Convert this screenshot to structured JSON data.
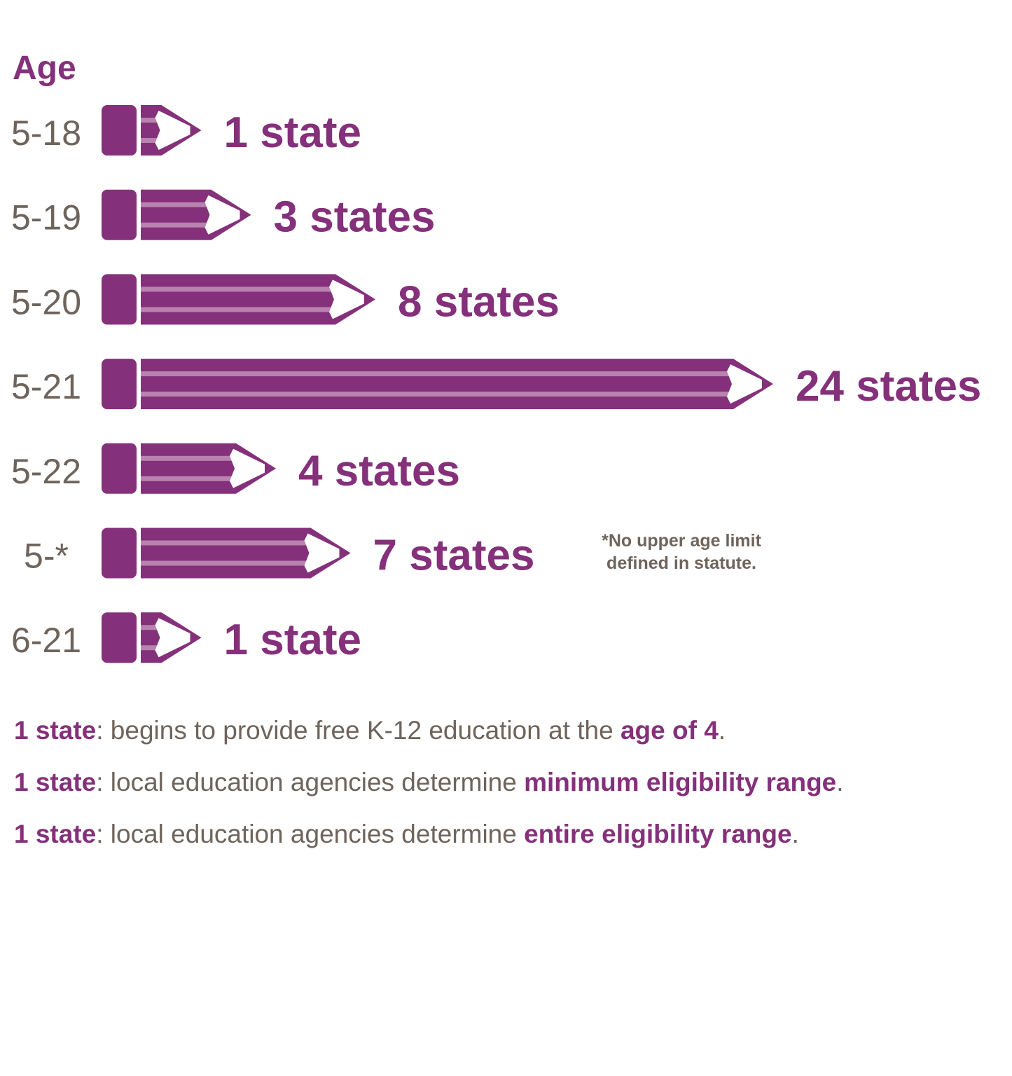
{
  "chart_data": {
    "type": "bar",
    "title": "",
    "axis_label": "Age",
    "categories": [
      "5-18",
      "5-19",
      "5-20",
      "5-21",
      "5-22",
      "5-*",
      "6-21"
    ],
    "values": [
      1,
      3,
      8,
      24,
      4,
      7,
      1
    ],
    "value_labels": [
      "1 state",
      "3 states",
      "8 states",
      "24 states",
      "4 states",
      "7 states",
      "1 state"
    ],
    "orientation": "horizontal",
    "mark": "pencil",
    "footnote": "*No upper age limit defined in statute.",
    "colors": {
      "bar": "#85307a",
      "stripe": "#b883ae",
      "category_text": "#6e645c",
      "value_text": "#85307a"
    }
  },
  "notes": [
    {
      "bold": "1 state",
      "text": ": begins to provide free K-12 education at the ",
      "emph": "age of 4",
      "end": "."
    },
    {
      "bold": "1 state",
      "text": ": local education agencies determine ",
      "emph": "minimum eligibility range",
      "end": "."
    },
    {
      "bold": "1 state",
      "text": ": local education agencies determine ",
      "emph": "entire eligibility range",
      "end": "."
    }
  ]
}
